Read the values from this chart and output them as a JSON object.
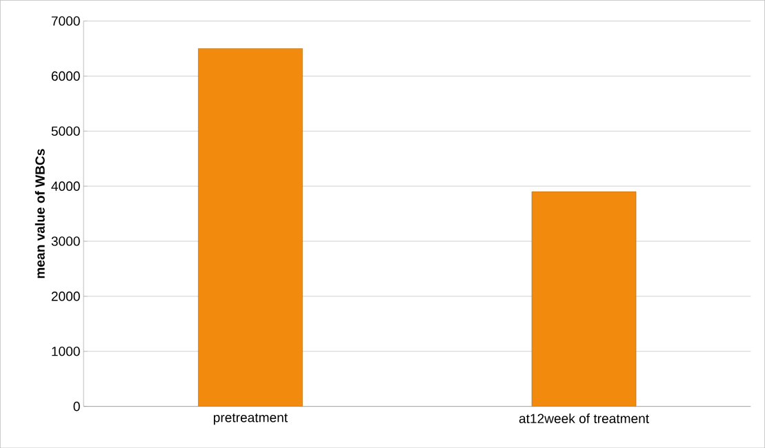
{
  "chart_data": {
    "type": "bar",
    "ylabel": "mean value of WBCs",
    "categories": [
      "pretreatment",
      "at12week of treatment"
    ],
    "values": [
      6500,
      3900
    ],
    "color": "#f28a0e",
    "ylim": [
      0,
      7000
    ],
    "yticks": [
      0,
      1000,
      2000,
      3000,
      4000,
      5000,
      6000,
      7000
    ],
    "grid": "y"
  }
}
